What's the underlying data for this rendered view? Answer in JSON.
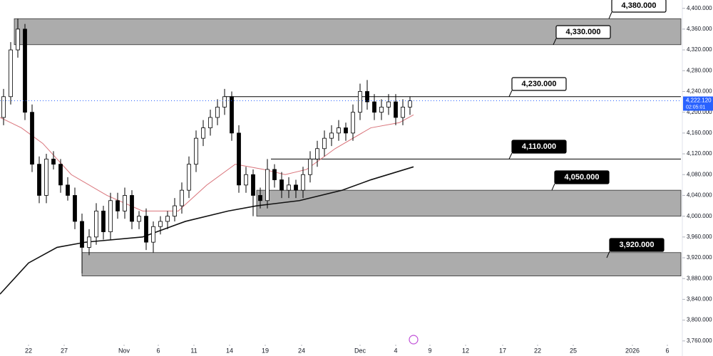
{
  "chart_data": {
    "type": "candlestick",
    "x": [
      0.5,
      1.5,
      2.5,
      3.5,
      4.5,
      5.5,
      6.5,
      7.5,
      8.5,
      9.5,
      10.5,
      11.5,
      12.5,
      13.5,
      14.5,
      15.5,
      16.5,
      17.5,
      18.5,
      19.5,
      20.5,
      21.5,
      22.5,
      23.5,
      24.5,
      25.5,
      26.5,
      27.5,
      28.5,
      29.5,
      30.5,
      31.5,
      32.5,
      33.5,
      34.5,
      35.5,
      36.5,
      37.5,
      38.5,
      39.5,
      40.5,
      41.5,
      42.5,
      43.5,
      44.5,
      45.5,
      46.5,
      47.5,
      48.5,
      49.5,
      50.5,
      51.5,
      52.5,
      53.5,
      54.5,
      55.5,
      56.5,
      57.5
    ],
    "open": [
      4190,
      4230,
      4320,
      4360,
      4200,
      4100,
      4040,
      4110,
      4100,
      4060,
      4040,
      3990,
      3940,
      3960,
      4010,
      3970,
      4030,
      4010,
      4040,
      3990,
      4000,
      3950,
      3980,
      3990,
      4000,
      4020,
      4050,
      4100,
      4150,
      4170,
      4190,
      4210,
      4230,
      4160,
      4060,
      4080,
      4040,
      4030,
      4090,
      4070,
      4050,
      4060,
      4050,
      4080,
      4110,
      4130,
      4150,
      4160,
      4170,
      4160,
      4200,
      4240,
      4220,
      4200,
      4210,
      4220,
      4190,
      4210
    ],
    "high": [
      4245,
      4335,
      4380,
      4370,
      4215,
      4115,
      4120,
      4125,
      4110,
      4075,
      4055,
      4005,
      3975,
      4025,
      4020,
      4045,
      4045,
      4055,
      4050,
      4010,
      4015,
      3990,
      4000,
      4010,
      4035,
      4065,
      4115,
      4165,
      4185,
      4205,
      4225,
      4245,
      4240,
      4175,
      4095,
      4090,
      4055,
      4110,
      4100,
      4085,
      4075,
      4070,
      4095,
      4125,
      4145,
      4165,
      4175,
      4185,
      4180,
      4215,
      4255,
      4262,
      4235,
      4225,
      4235,
      4235,
      4225,
      4230
    ],
    "low": [
      4175,
      4215,
      4305,
      4185,
      4085,
      4025,
      4025,
      4090,
      4045,
      4030,
      3975,
      3890,
      3925,
      3945,
      3955,
      3955,
      3995,
      3995,
      3975,
      3975,
      3935,
      3930,
      3965,
      3975,
      3990,
      4005,
      4035,
      4085,
      4135,
      4155,
      4175,
      4195,
      4145,
      4045,
      4045,
      4000,
      4015,
      4015,
      4055,
      4035,
      4035,
      4035,
      4035,
      4065,
      4095,
      4115,
      4135,
      4145,
      4145,
      4145,
      4185,
      4205,
      4185,
      4185,
      4195,
      4175,
      4175,
      4195
    ],
    "close": [
      4230,
      4320,
      4360,
      4200,
      4100,
      4040,
      4110,
      4100,
      4060,
      4040,
      3990,
      3940,
      3960,
      4010,
      3970,
      4030,
      4010,
      4040,
      3990,
      4000,
      3950,
      3980,
      3990,
      4000,
      4020,
      4050,
      4100,
      4150,
      4170,
      4190,
      4210,
      4230,
      4160,
      4060,
      4080,
      4040,
      4030,
      4090,
      4070,
      4050,
      4060,
      4050,
      4080,
      4110,
      4130,
      4150,
      4160,
      4170,
      4160,
      4200,
      4240,
      4220,
      4200,
      4210,
      4220,
      4190,
      4210,
      4222
    ],
    "up_color": "#000000",
    "down_color": "#000000",
    "moving_averages": [
      {
        "color": "#d9737a",
        "x": [
          0,
          3,
          6,
          10,
          15,
          20,
          25,
          29,
          33,
          37,
          40,
          43,
          47,
          52,
          56,
          58
        ],
        "values": [
          4190,
          4170,
          4140,
          4080,
          4040,
          4010,
          4010,
          4060,
          4100,
          4090,
          4080,
          4090,
          4130,
          4170,
          4180,
          4195
        ]
      },
      {
        "color": "#111111",
        "x": [
          0,
          4,
          8,
          12,
          20,
          26,
          32,
          36,
          42,
          48,
          52,
          58
        ],
        "values": [
          3850,
          3910,
          3940,
          3950,
          3960,
          3990,
          4010,
          4020,
          4030,
          4050,
          4070,
          4095
        ]
      }
    ],
    "zones": [
      {
        "from": 4330,
        "to": 4380,
        "start": 2
      },
      {
        "from": 4000,
        "to": 4050,
        "start": 36
      },
      {
        "from": 3885,
        "to": 3930,
        "start": 11.5
      }
    ],
    "lines": [
      {
        "value": 4230,
        "start": 31.5
      },
      {
        "value": 4110,
        "start": 38
      }
    ],
    "levels": [
      {
        "value": 4380,
        "label": "4,380.000",
        "color": "#ffffff"
      },
      {
        "value": 4330,
        "label": "4,330.000",
        "color": "#ffffff"
      },
      {
        "value": 4230,
        "label": "4,230.000",
        "color": "#ffffff"
      },
      {
        "value": 4110,
        "label": "4,110.000",
        "color": "#000000"
      },
      {
        "value": 4050,
        "label": "4,050.000",
        "color": "#000000"
      },
      {
        "value": 3920,
        "label": "3,920.000",
        "color": "#000000"
      }
    ],
    "last_price": {
      "value": 4222.12,
      "label": "4,222.120"
    },
    "countdown": "02:05:01",
    "xlim": [
      0,
      95.5
    ],
    "ylim": [
      3731,
      4416
    ],
    "xticks": [
      {
        "value": 4,
        "label": "22"
      },
      {
        "value": 9,
        "label": "27"
      },
      {
        "value": 17.4,
        "label": "Nov"
      },
      {
        "value": 22.2,
        "label": "6"
      },
      {
        "value": 27.2,
        "label": "11"
      },
      {
        "value": 32.2,
        "label": "14"
      },
      {
        "value": 37.2,
        "label": "19"
      },
      {
        "value": 42.3,
        "label": "24"
      },
      {
        "value": 50.5,
        "label": "Dec"
      },
      {
        "value": 55.5,
        "label": "4"
      },
      {
        "value": 60.3,
        "label": "9"
      },
      {
        "value": 65.3,
        "label": "12"
      },
      {
        "value": 70.5,
        "label": "17"
      },
      {
        "value": 75.4,
        "label": "22"
      },
      {
        "value": 80.4,
        "label": "25"
      },
      {
        "value": 88.7,
        "label": "2026"
      },
      {
        "value": 93.6,
        "label": "6"
      }
    ],
    "yticks": [
      {
        "value": 4400,
        "label": "4,400.000"
      },
      {
        "value": 4360,
        "label": "4,360.000"
      },
      {
        "value": 4320,
        "label": "4,320.000"
      },
      {
        "value": 4280,
        "label": "4,280.000"
      },
      {
        "value": 4240,
        "label": "4,240.000"
      },
      {
        "value": 4200,
        "label": "4,200.000"
      },
      {
        "value": 4160,
        "label": "4,160.000"
      },
      {
        "value": 4120,
        "label": "4,120.000"
      },
      {
        "value": 4080,
        "label": "4,080.000"
      },
      {
        "value": 4040,
        "label": "4,040.000"
      },
      {
        "value": 4000,
        "label": "4,000.000"
      },
      {
        "value": 3960,
        "label": "3,960.000"
      },
      {
        "value": 3920,
        "label": "3,920.000"
      },
      {
        "value": 3880,
        "label": "3,880.000"
      },
      {
        "value": 3840,
        "label": "3,840.000"
      },
      {
        "value": 3800,
        "label": "3,800.000"
      },
      {
        "value": 3760,
        "label": "3,760.000"
      }
    ]
  }
}
